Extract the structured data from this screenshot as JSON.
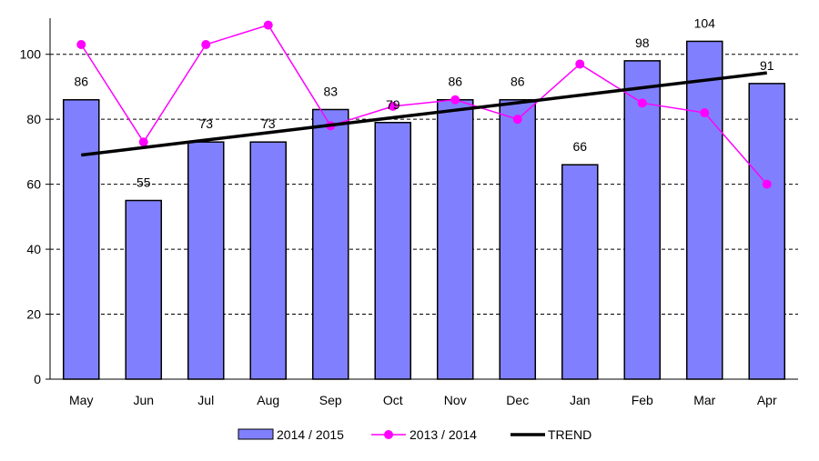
{
  "chart_data": {
    "type": "bar",
    "categories": [
      "May",
      "Jun",
      "Jul",
      "Aug",
      "Sep",
      "Oct",
      "Nov",
      "Dec",
      "Jan",
      "Feb",
      "Mar",
      "Apr"
    ],
    "series": [
      {
        "name": "2014 / 2015",
        "type": "bar",
        "color": "#8080ff",
        "values": [
          86,
          55,
          73,
          73,
          83,
          79,
          86,
          86,
          66,
          98,
          104,
          91
        ],
        "data_labels": [
          "86",
          "55",
          "73",
          "73",
          "83",
          "79",
          "86",
          "86",
          "66",
          "98",
          "104",
          "91"
        ]
      },
      {
        "name": "2013 / 2014",
        "type": "line",
        "color": "#ff00ff",
        "values": [
          103,
          73,
          103,
          109,
          78,
          84,
          86,
          80,
          97,
          85,
          82,
          60
        ]
      },
      {
        "name": "TREND",
        "type": "line",
        "color": "#000000",
        "values": [
          69,
          71.3,
          73.6,
          75.9,
          78.2,
          80.5,
          82.8,
          85.1,
          87.4,
          89.7,
          92.0,
          94.3
        ]
      }
    ],
    "ylim": [
      0,
      110
    ],
    "yticks": [
      "0",
      "20",
      "40",
      "60",
      "80",
      "100"
    ],
    "ytick_values": [
      0,
      20,
      40,
      60,
      80,
      100
    ],
    "grid": "horizontal-dashed",
    "legend_position": "bottom",
    "title": "",
    "xlabel": "",
    "ylabel": ""
  }
}
